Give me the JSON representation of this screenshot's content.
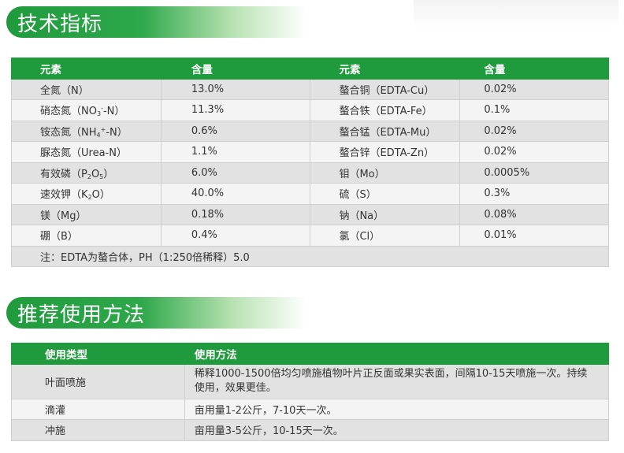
{
  "sections": {
    "specs_title": "技术指标",
    "usage_title": "推荐使用方法"
  },
  "spec_table": {
    "headers": [
      "元素",
      "含量",
      "元素",
      "含量"
    ],
    "rows": [
      {
        "el1": "全氮（N）",
        "val1": "13.0%",
        "el2": "螯合铜（EDTA-Cu）",
        "val2": "0.02%"
      },
      {
        "el1_pre": "硝态氮（NO",
        "el1_sub": "3",
        "el1_sup": "-",
        "el1_post": "-N）",
        "val1": "11.3%",
        "el2": "螯合铁（EDTA-Fe）",
        "val2": "0.1%"
      },
      {
        "el1_pre": "铵态氮（NH",
        "el1_sub": "4",
        "el1_sup": "+",
        "el1_post": "-N）",
        "val1": "0.6%",
        "el2": "螯合锰（EDTA-Mu）",
        "val2": "0.02%"
      },
      {
        "el1": "脲态氮（Urea-N）",
        "val1": "1.1%",
        "el2": "螯合锌（EDTA-Zn）",
        "val2": "0.02%"
      },
      {
        "el1_pre": "有效磷（P",
        "el1_sub": "2",
        "el1_mid": "O",
        "el1_sub2": "5",
        "el1_post": "）",
        "val1": "6.0%",
        "el2": "钼（Mo）",
        "val2": "0.0005%"
      },
      {
        "el1_pre": "速效钾（K",
        "el1_sub": "2",
        "el1_post": "O）",
        "val1": "40.0%",
        "el2": "硫（S）",
        "val2": "0.3%"
      },
      {
        "el1": "镁（Mg）",
        "val1": "0.18%",
        "el2": "钠（Na）",
        "val2": "0.08%"
      },
      {
        "el1": "硼（B）",
        "val1": "0.4%",
        "el2": "氯（Cl）",
        "val2": "0.01%"
      }
    ],
    "note": "注：EDTA为螯合体，PH（1:250倍稀释）5.0"
  },
  "usage_table": {
    "headers": [
      "使用类型",
      "使用方法"
    ],
    "rows": [
      {
        "type": "叶面喷施",
        "method": "稀释1000-1500倍均匀喷施植物叶片正反面或果实表面，间隔10-15天喷施一次。持续使用，效果更佳。"
      },
      {
        "type": "滴灌",
        "method": "亩用量1-2公斤，7-10天一次。"
      },
      {
        "type": "冲施",
        "method": "亩用量3-5公斤，10-15天一次。"
      }
    ]
  },
  "colors": {
    "header_green": "#1f9a3c",
    "row_dark": "#e2e2e2",
    "row_light": "#f4f4f4"
  }
}
